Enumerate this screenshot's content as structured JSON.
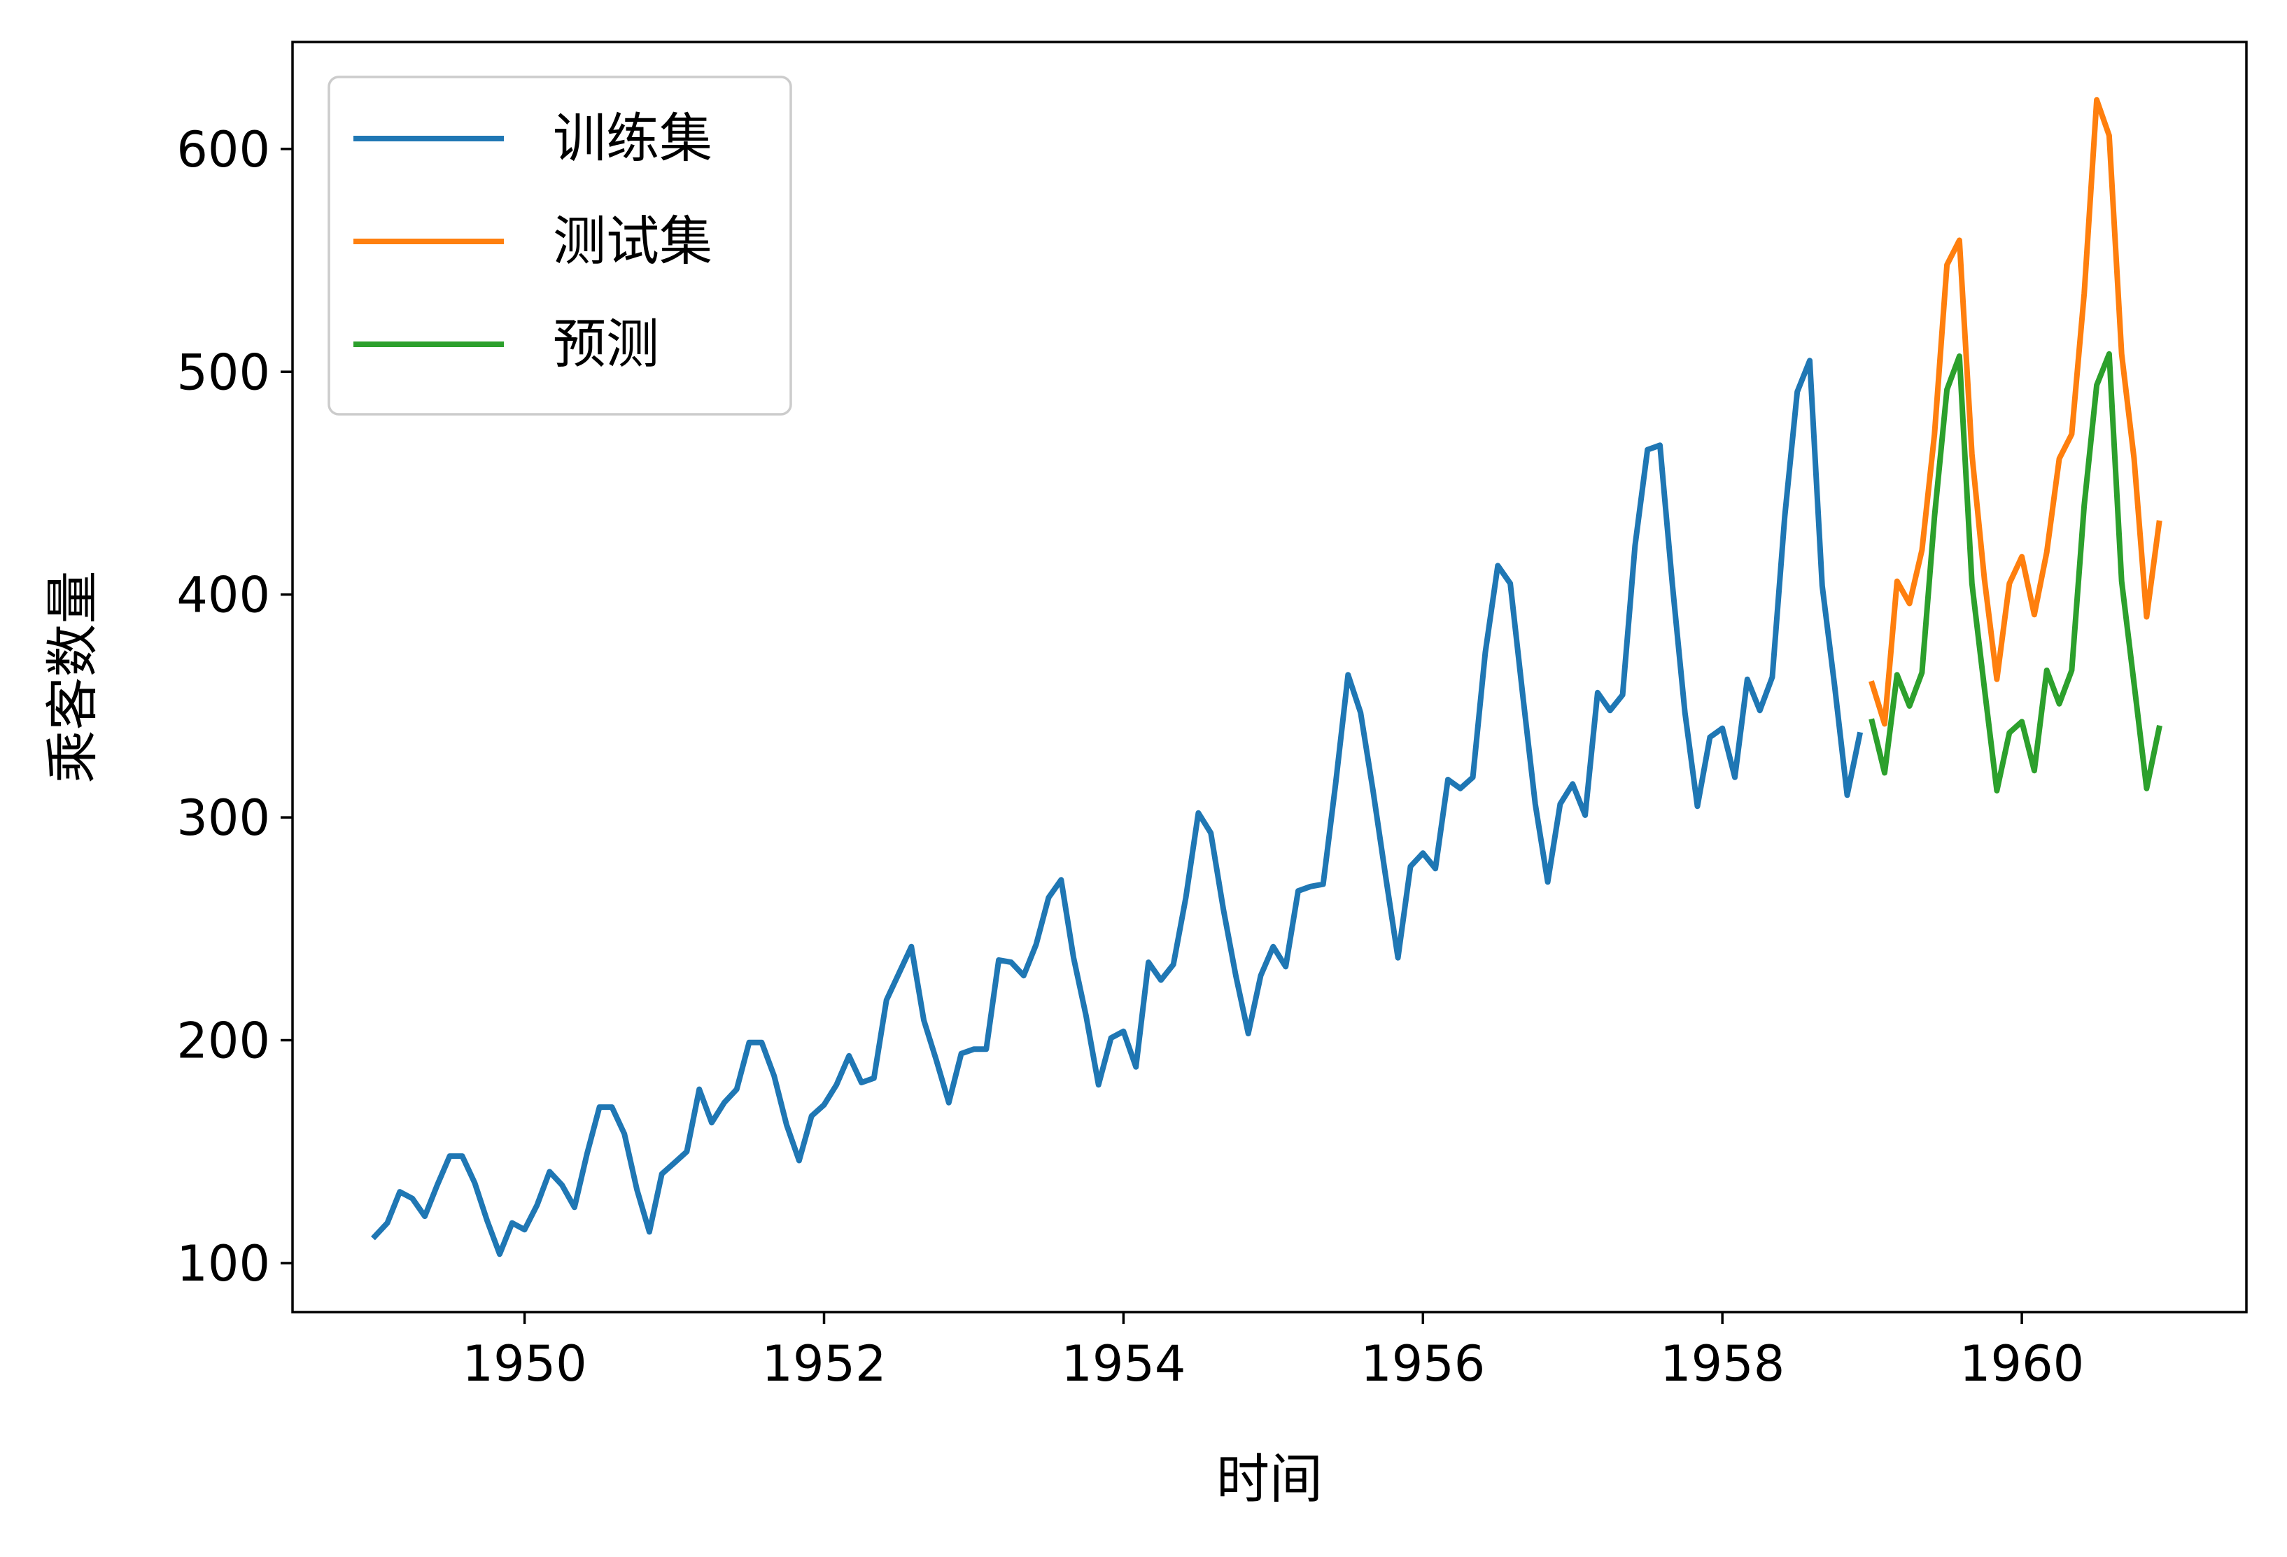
{
  "chart_data": {
    "type": "line",
    "title": "",
    "xlabel": "时间",
    "ylabel": "乘客数量",
    "xlim": [
      1948.45,
      1961.5
    ],
    "ylim": [
      78,
      648
    ],
    "xticks": [
      1950,
      1952,
      1954,
      1956,
      1958,
      1960
    ],
    "xtick_labels": [
      "1950",
      "1952",
      "1954",
      "1956",
      "1958",
      "1960"
    ],
    "yticks": [
      100,
      200,
      300,
      400,
      500,
      600
    ],
    "ytick_labels": [
      "100",
      "200",
      "300",
      "400",
      "500",
      "600"
    ],
    "grid": false,
    "legend_position": "top-left",
    "series": [
      {
        "name": "训练集",
        "color": "#1f77b4",
        "x_start": "1949-01",
        "x_step": "1 month",
        "values": [
          112,
          118,
          132,
          129,
          121,
          135,
          148,
          148,
          136,
          119,
          104,
          118,
          115,
          126,
          141,
          135,
          125,
          149,
          170,
          170,
          158,
          133,
          114,
          140,
          145,
          150,
          178,
          163,
          172,
          178,
          199,
          199,
          184,
          162,
          146,
          166,
          171,
          180,
          193,
          181,
          183,
          218,
          230,
          242,
          209,
          191,
          172,
          194,
          196,
          196,
          236,
          235,
          229,
          243,
          264,
          272,
          237,
          211,
          180,
          201,
          204,
          188,
          235,
          227,
          234,
          264,
          302,
          293,
          259,
          229,
          203,
          229,
          242,
          233,
          267,
          269,
          270,
          315,
          364,
          347,
          312,
          274,
          237,
          278,
          284,
          277,
          317,
          313,
          318,
          374,
          413,
          405,
          355,
          306,
          271,
          306,
          315,
          301,
          356,
          348,
          355,
          422,
          465,
          467,
          404,
          347,
          305,
          336,
          340,
          318,
          362,
          348,
          363,
          435,
          491,
          505,
          404,
          359,
          310,
          337
        ]
      },
      {
        "name": "测试集",
        "color": "#ff7f0e",
        "x_start": "1959-01",
        "x_step": "1 month",
        "values": [
          360,
          342,
          406,
          396,
          420,
          472,
          548,
          559,
          463,
          407,
          362,
          405,
          417,
          391,
          419,
          461,
          472,
          535,
          622,
          606,
          508,
          461,
          390,
          432
        ]
      },
      {
        "name": "预测",
        "color": "#2ca02c",
        "x_start": "1959-01",
        "x_step": "1 month",
        "values": [
          343,
          320,
          364,
          350,
          365,
          435,
          492,
          507,
          405,
          358,
          312,
          338,
          343,
          321,
          366,
          351,
          366,
          440,
          494,
          508,
          406,
          360,
          313,
          340
        ]
      }
    ]
  }
}
